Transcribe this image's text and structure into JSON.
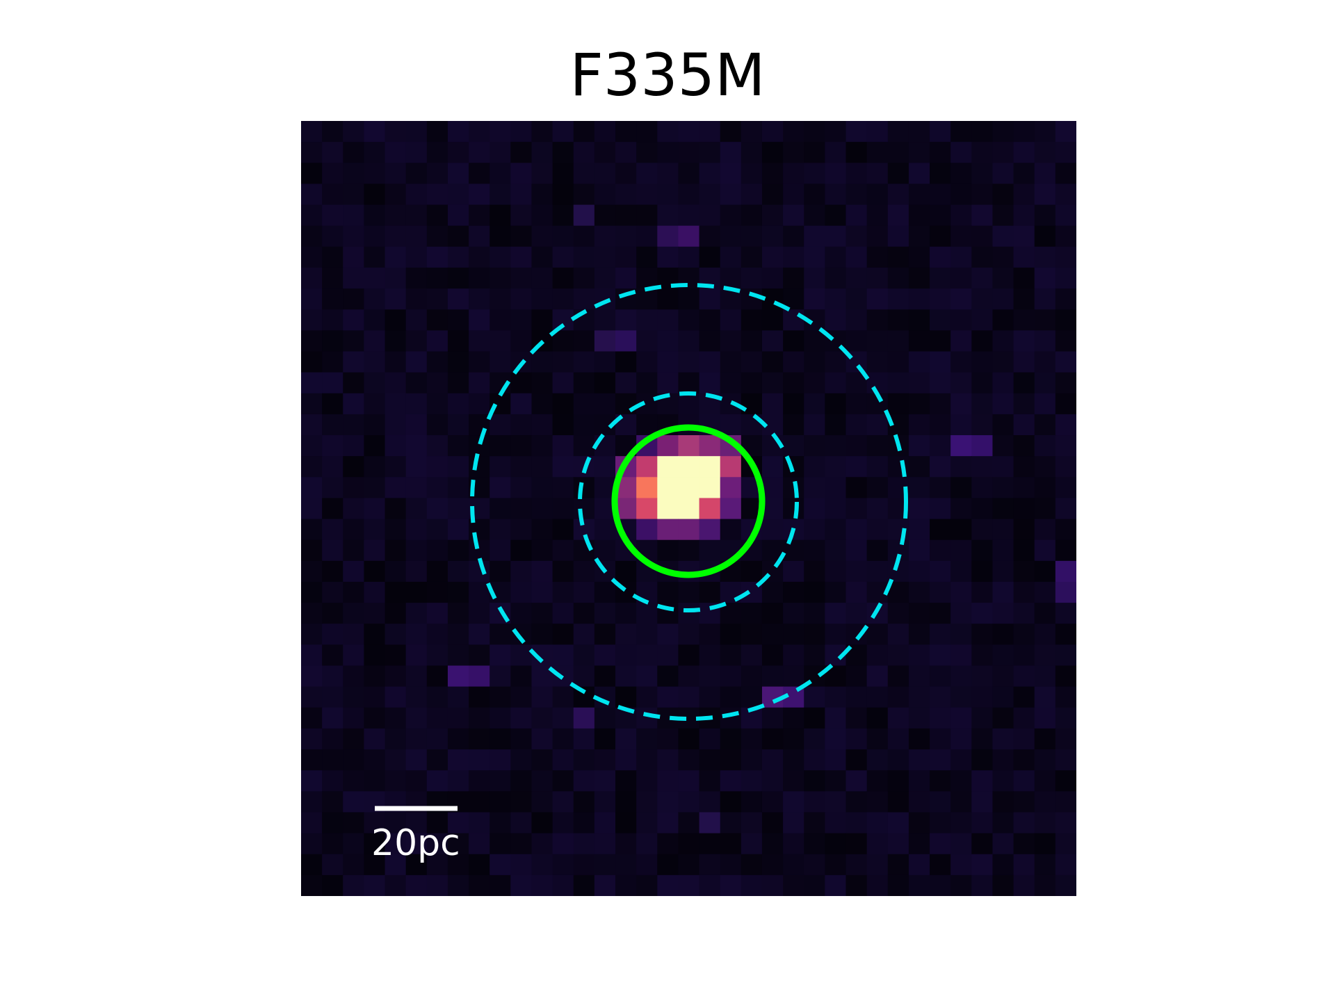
{
  "title": "F335M",
  "scalebar": {
    "label": "20pc"
  },
  "colors": {
    "background": "#05030f",
    "aperture": "#00ff00",
    "annulus": "#00e5f0",
    "scalebar": "#ffffff",
    "colormap": "magma"
  },
  "image": {
    "grid_size": 37,
    "colormap": "magma",
    "source_present": true
  }
}
